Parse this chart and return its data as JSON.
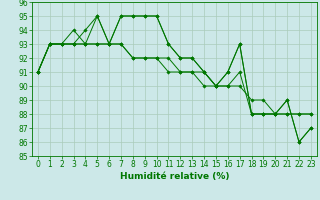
{
  "xlabel": "Humidité relative (%)",
  "xlim_min": -0.5,
  "xlim_max": 23.5,
  "ylim_min": 85,
  "ylim_max": 96,
  "yticks": [
    85,
    86,
    87,
    88,
    89,
    90,
    91,
    92,
    93,
    94,
    95,
    96
  ],
  "xticks": [
    0,
    1,
    2,
    3,
    4,
    5,
    6,
    7,
    8,
    9,
    10,
    11,
    12,
    13,
    14,
    15,
    16,
    17,
    18,
    19,
    20,
    21,
    22,
    23
  ],
  "bg_color": "#cce8e8",
  "grid_color": "#aaccbb",
  "line_color": "#007700",
  "series": [
    [
      91,
      93,
      93,
      94,
      93,
      95,
      93,
      95,
      95,
      95,
      95,
      93,
      92,
      92,
      91,
      90,
      91,
      93,
      88,
      88,
      88,
      89,
      86,
      87
    ],
    [
      91,
      93,
      93,
      93,
      94,
      95,
      93,
      95,
      95,
      95,
      95,
      93,
      92,
      92,
      91,
      90,
      91,
      93,
      88,
      88,
      88,
      89,
      86,
      87
    ],
    [
      91,
      93,
      93,
      93,
      93,
      93,
      93,
      93,
      92,
      92,
      92,
      92,
      91,
      91,
      91,
      90,
      90,
      91,
      88,
      88,
      88,
      88,
      88,
      88
    ],
    [
      91,
      93,
      93,
      93,
      93,
      93,
      93,
      93,
      92,
      92,
      92,
      91,
      91,
      91,
      90,
      90,
      90,
      90,
      89,
      89,
      88,
      88,
      88,
      88
    ]
  ],
  "tick_fontsize": 5.5,
  "xlabel_fontsize": 6.5
}
